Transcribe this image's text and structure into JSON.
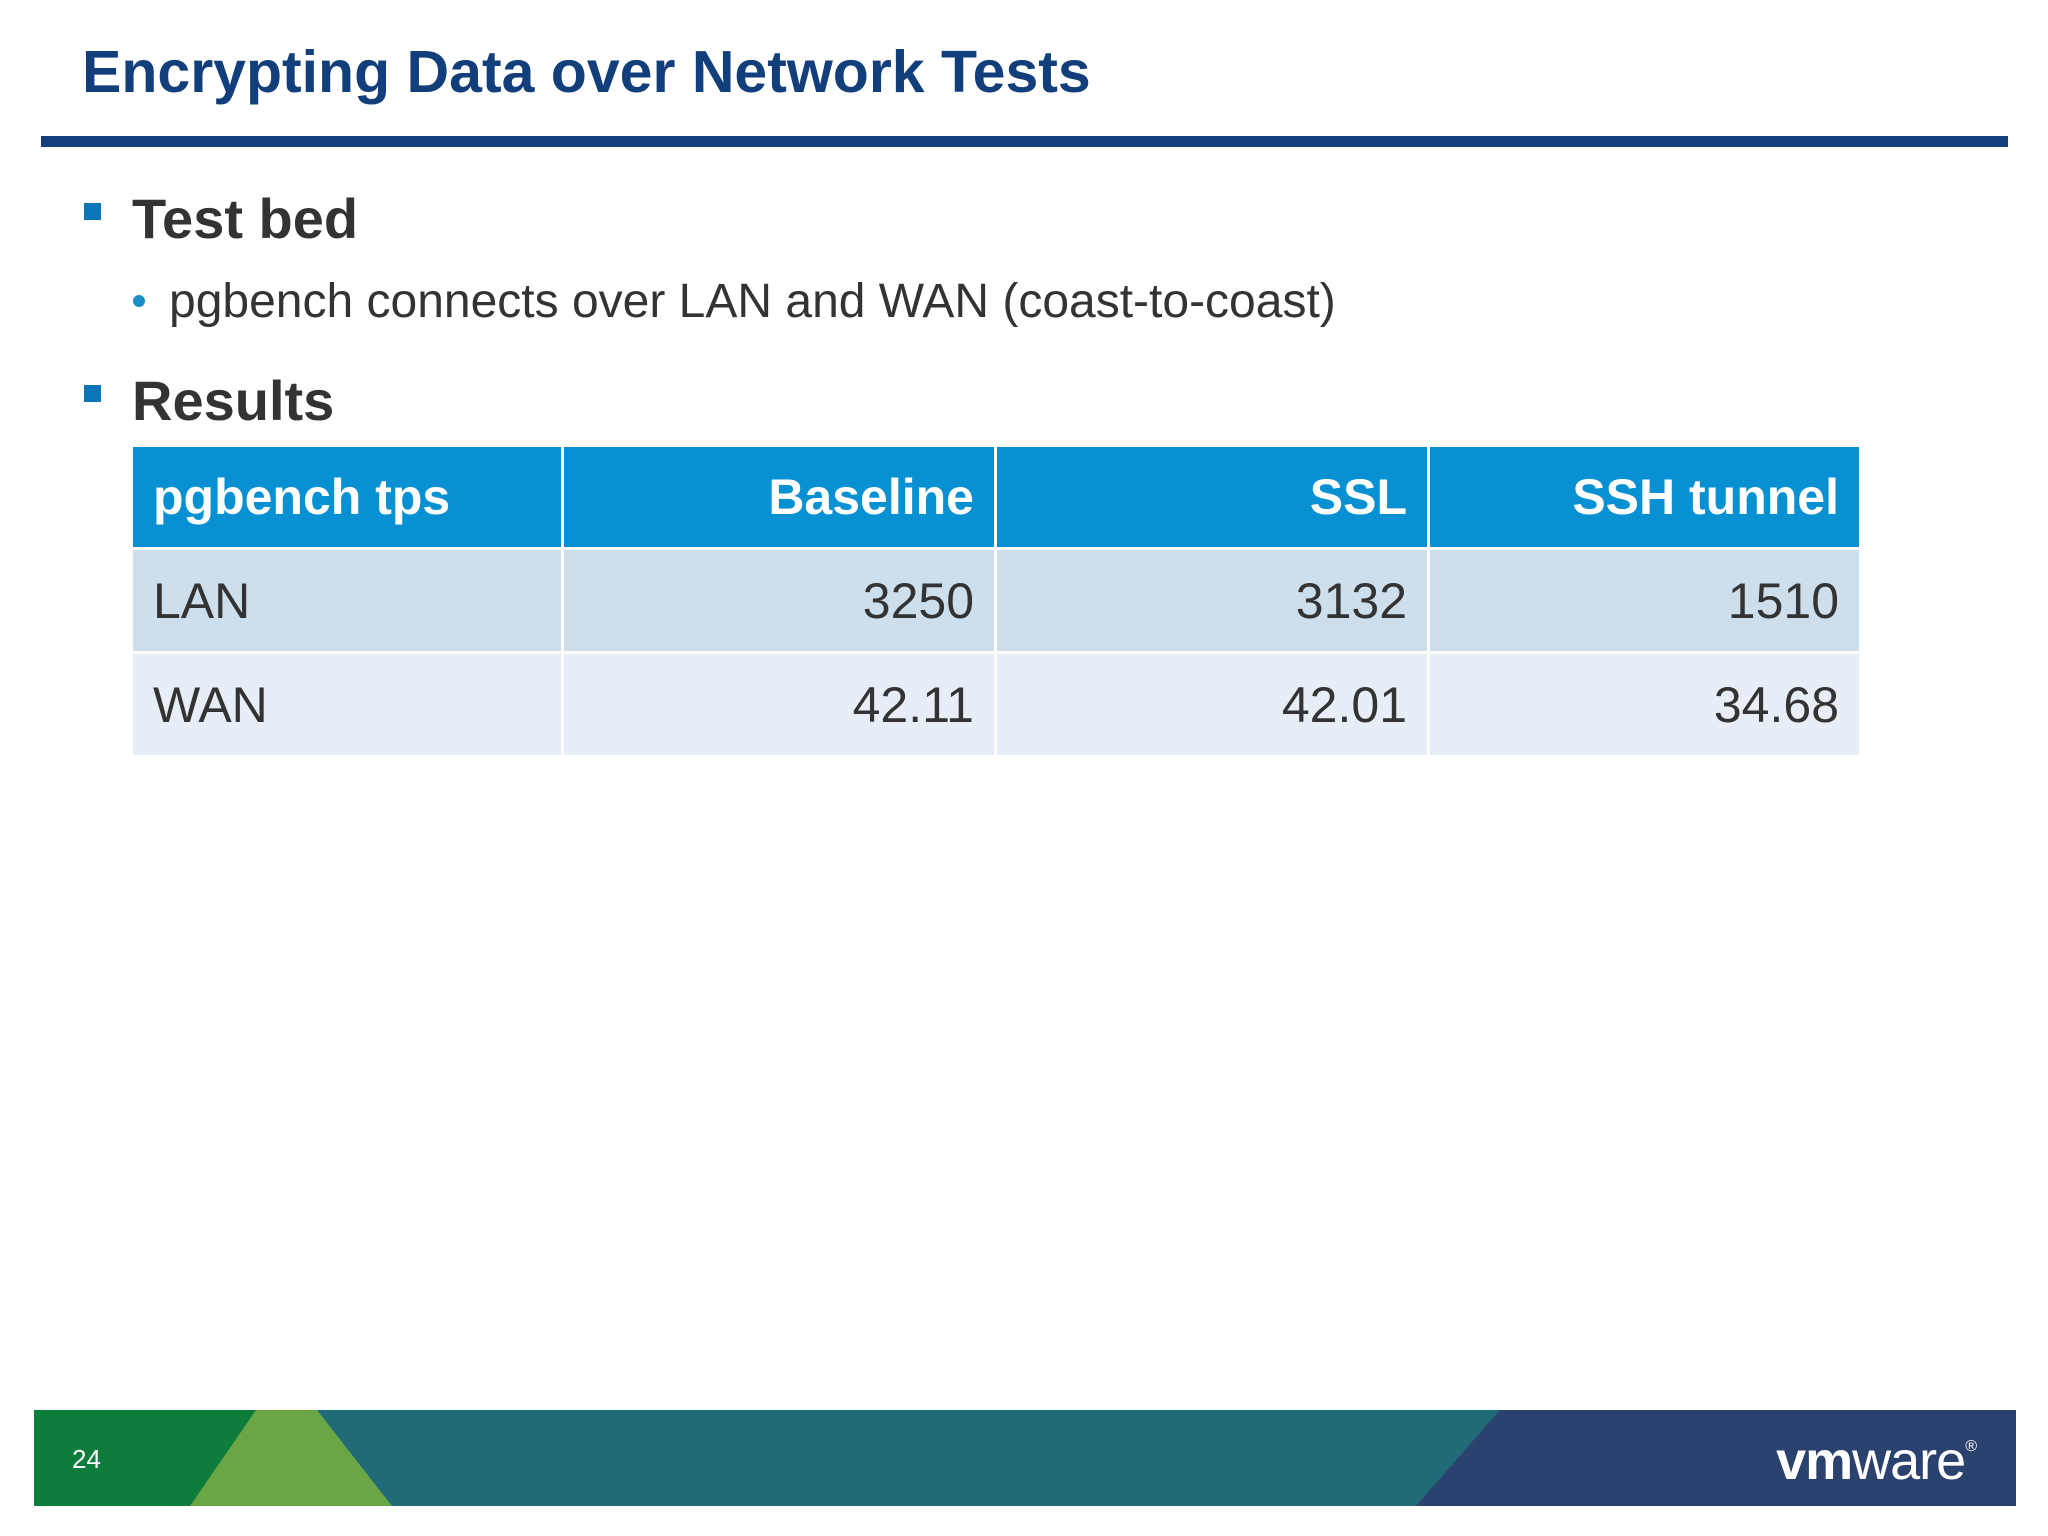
{
  "slide": {
    "title": "Encrypting Data over Network Tests",
    "bullets": [
      {
        "text": "Test bed",
        "sub": [
          "pgbench connects over LAN and WAN (coast-to-coast)"
        ]
      },
      {
        "text": "Results"
      }
    ]
  },
  "table": {
    "headers": [
      "pgbench tps",
      "Baseline",
      "SSL",
      "SSH tunnel"
    ],
    "rows": [
      [
        "LAN",
        "3250",
        "3132",
        "1510"
      ],
      [
        "WAN",
        "42.11",
        "42.01",
        "34.68"
      ]
    ]
  },
  "footer": {
    "page_number": "24",
    "logo_vm": "vm",
    "logo_ware": "ware",
    "logo_mark": "®"
  },
  "colors": {
    "title": "#123f7b",
    "table_header": "#0791d3",
    "row_odd": "#cddfed",
    "row_even": "#e7eef7",
    "footer_green": "#0e7d3b",
    "footer_light_green": "#6aa644",
    "footer_teal": "#216a78",
    "footer_navy": "#2b416e"
  }
}
